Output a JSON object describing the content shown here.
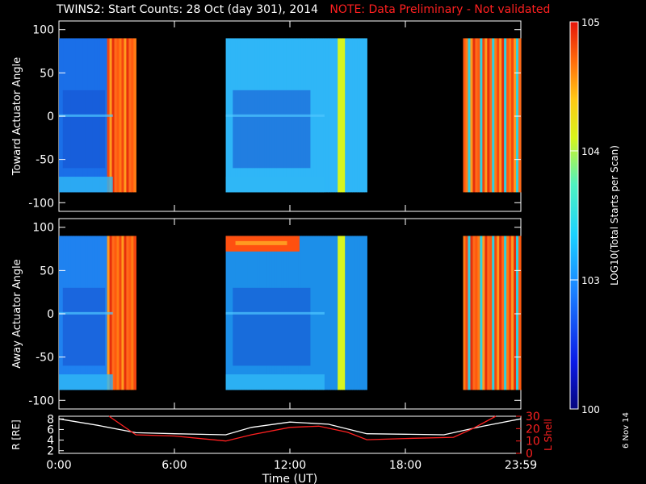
{
  "title": {
    "main": "TWINS2: Start Counts: 28 Oct (day 301), 2014",
    "note": "NOTE: Data Preliminary - Not validated"
  },
  "plot_date": "6 Nov 14",
  "colorbar": {
    "label": "LOG10(Total Starts per Scan)",
    "ticks": [
      "10^5",
      "10^4",
      "10^3",
      "100"
    ],
    "log_min": 2,
    "log_max": 5
  },
  "chart_data": [
    {
      "type": "heatmap",
      "title": "",
      "ylabel": "Toward Actuator Angle",
      "xlabel": "",
      "ylim": [
        -110,
        110
      ],
      "yticks": [
        100,
        50,
        0,
        -50,
        -100
      ],
      "xlim_hours": [
        0,
        24
      ],
      "angle_range": [
        -88,
        90
      ],
      "data_blocks": [
        {
          "start": "0:00",
          "end": "4:00",
          "level": "blue-cyan, red band 2:00-4:00"
        },
        {
          "start": "8:40",
          "end": "16:00",
          "level": "blue-cyan, yellow band near 15:00"
        },
        {
          "start": "21:00",
          "end": "23:59",
          "level": "red-orange striped"
        }
      ]
    },
    {
      "type": "heatmap",
      "title": "",
      "ylabel": "Away Actuator Angle",
      "xlabel": "",
      "ylim": [
        -110,
        110
      ],
      "yticks": [
        100,
        50,
        0,
        -50,
        -100
      ],
      "xlim_hours": [
        0,
        24
      ],
      "angle_range": [
        -88,
        90
      ],
      "data_blocks": [
        {
          "start": "0:00",
          "end": "4:00",
          "level": "blue-cyan, red band 2:00-4:00"
        },
        {
          "start": "8:40",
          "end": "16:00",
          "level": "blue-cyan, red band near top 8:40-12:30"
        },
        {
          "start": "21:00",
          "end": "23:59",
          "level": "red-orange striped"
        }
      ]
    },
    {
      "type": "line",
      "title": "",
      "xlabel": "Time (UT)",
      "ylabel": "R [RE]",
      "ylabel_right": "L Shell",
      "xticks": [
        "0:00",
        "6:00",
        "12:00",
        "18:00",
        "23:59"
      ],
      "xtick_hours": [
        0,
        6,
        12,
        18,
        24
      ],
      "ylim": [
        1.5,
        8.5
      ],
      "yticks": [
        2,
        4,
        6,
        8
      ],
      "ylim_right": [
        0,
        30
      ],
      "yticks_right": [
        0,
        10,
        20,
        30
      ],
      "series": [
        {
          "name": "R [RE]",
          "color": "#ffffff",
          "x": [
            0,
            2,
            4,
            6,
            8.67,
            10,
            12,
            14,
            16,
            18,
            20,
            22,
            23.98
          ],
          "y": [
            8.0,
            6.8,
            5.4,
            5.2,
            5.0,
            6.4,
            7.4,
            7.0,
            5.2,
            5.1,
            5.0,
            6.6,
            8.0
          ]
        },
        {
          "name": "L Shell",
          "color": "#ff2020",
          "x": [
            2.6,
            4,
            6,
            8.67,
            10,
            12,
            13.5,
            15,
            16,
            18,
            20.5,
            21.5,
            22.7
          ],
          "y": [
            30,
            15,
            14,
            10,
            15,
            21,
            22,
            17,
            11,
            12,
            13,
            20,
            30
          ]
        }
      ]
    }
  ]
}
